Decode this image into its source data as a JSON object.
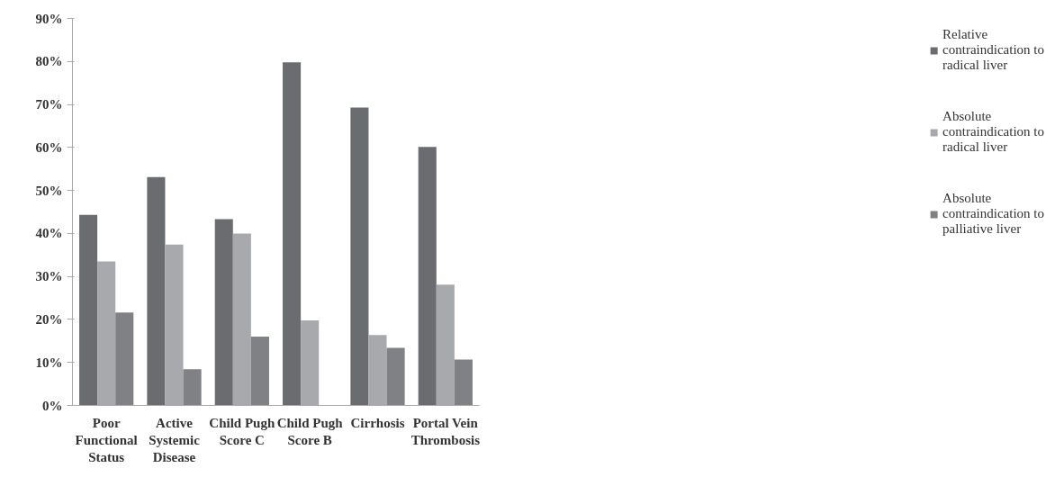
{
  "chart_data": {
    "type": "bar",
    "categories": [
      "Poor Functional Status",
      "Active Systemic Disease",
      "Child Pugh Score C",
      "Child Pugh Score B",
      "Cirrhosis",
      "Portal Vein Thrombosis"
    ],
    "series": [
      {
        "name": "Relative contraindication to radical liver",
        "color": "#6b6c70",
        "values": [
          44.3,
          53.1,
          43.3,
          79.8,
          69.3,
          60.1
        ]
      },
      {
        "name": "Absolute contraindication to radical liver",
        "color": "#a8a9ad",
        "values": [
          33.5,
          37.4,
          40,
          19.8,
          16.4,
          28.1
        ]
      },
      {
        "name": "Absolute contraindication to palliative liver",
        "color": "#808185",
        "values": [
          21.6,
          8.4,
          16,
          null,
          13.4,
          10.7
        ]
      }
    ],
    "ylim": [
      0,
      90
    ],
    "yticks": [
      {
        "value": 0,
        "label": "0%"
      },
      {
        "value": 10,
        "label": "10%"
      },
      {
        "value": 20,
        "label": "20%"
      },
      {
        "value": 30,
        "label": "30%"
      },
      {
        "value": 40,
        "label": "40%"
      },
      {
        "value": 50,
        "label": "50%"
      },
      {
        "value": 60,
        "label": "60%"
      },
      {
        "value": 70,
        "label": "70%"
      },
      {
        "value": 80,
        "label": "80%"
      },
      {
        "value": 90,
        "label": "90%"
      }
    ],
    "grid": false,
    "legend": "right"
  }
}
